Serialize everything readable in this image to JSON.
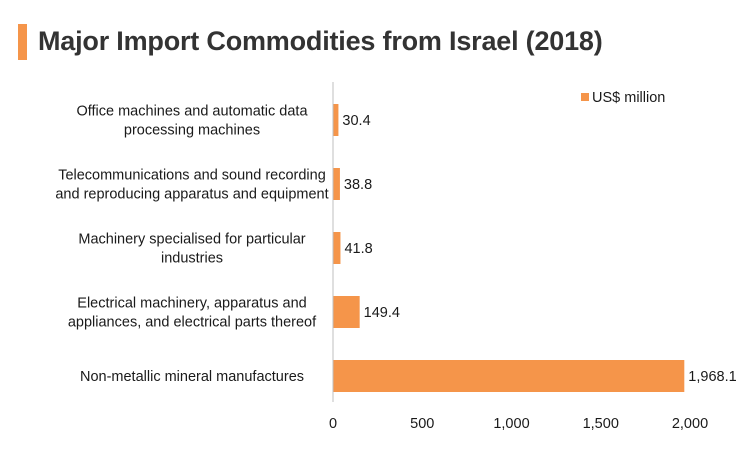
{
  "title": "Major Import Commodities from Israel (2018)",
  "colors": {
    "accent": "#f5954a",
    "axis": "#bfbfbf"
  },
  "chart_data": {
    "type": "bar",
    "orientation": "horizontal",
    "title": "Major Import Commodities from Israel (2018)",
    "categories": [
      [
        "Office machines and automatic data",
        "processing machines"
      ],
      [
        "Telecommunications and sound recording",
        "and reproducing apparatus and equipment"
      ],
      [
        "Machinery specialised for particular",
        "industries"
      ],
      [
        "Electrical machinery, apparatus and",
        "appliances, and electrical parts thereof"
      ],
      [
        "Non-metallic mineral manufactures"
      ]
    ],
    "series": [
      {
        "name": "US$ million",
        "values": [
          30.4,
          38.8,
          41.8,
          149.4,
          1968.1
        ],
        "labels": [
          "30.4",
          "38.8",
          "41.8",
          "149.4",
          "1,968.1"
        ]
      }
    ],
    "xlim": [
      0,
      2000
    ],
    "xticks": [
      0,
      500,
      1000,
      1500,
      2000
    ],
    "xtick_labels": [
      "0",
      "500",
      "1,000",
      "1,500",
      "2,000"
    ],
    "legend_position": "top-right",
    "grid": false
  }
}
